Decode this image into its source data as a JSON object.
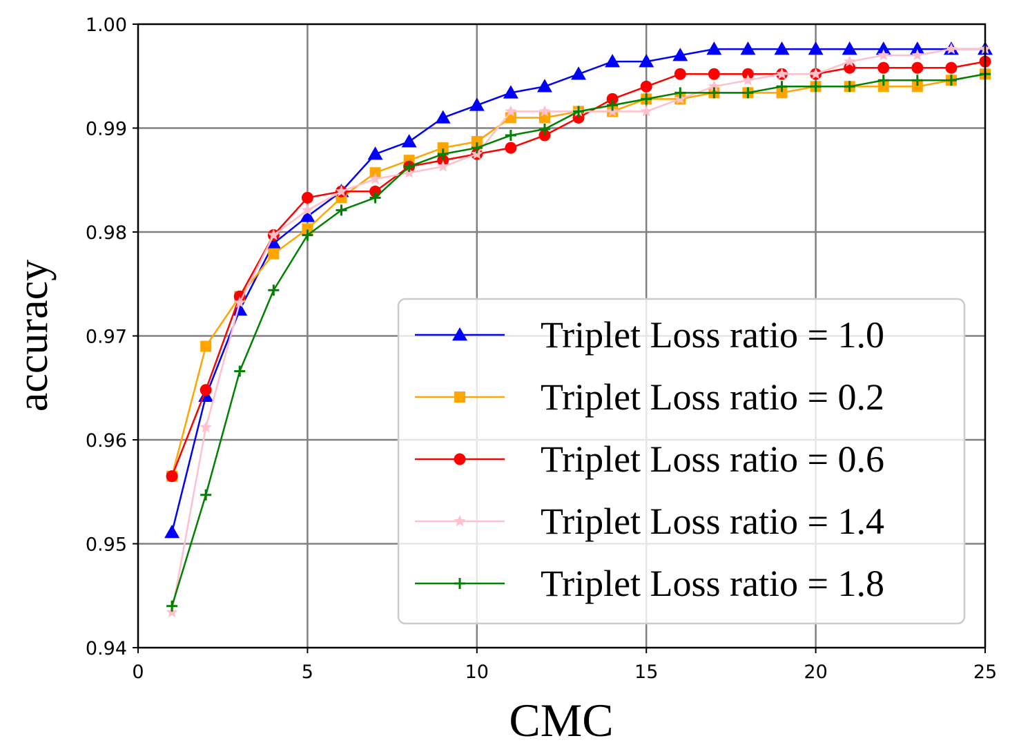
{
  "chart_data": {
    "type": "line",
    "title": "",
    "xlabel": "CMC",
    "ylabel": "accuracy",
    "xlim": [
      0,
      25
    ],
    "ylim": [
      0.94,
      1.0
    ],
    "grid": true,
    "legend_position": "lower-right",
    "xticks": [
      0,
      5,
      10,
      15,
      20,
      25
    ],
    "xtick_labels": [
      "0",
      "5",
      "10",
      "15",
      "20",
      "25"
    ],
    "yticks": [
      0.94,
      0.95,
      0.96,
      0.97,
      0.98,
      0.99,
      1.0
    ],
    "ytick_labels": [
      "0.94",
      "0.95",
      "0.96",
      "0.97",
      "0.98",
      "0.99",
      "1.00"
    ],
    "x": [
      1,
      2,
      3,
      4,
      5,
      6,
      7,
      8,
      9,
      10,
      11,
      12,
      13,
      14,
      15,
      16,
      17,
      18,
      19,
      20,
      21,
      22,
      23,
      24,
      25
    ],
    "series": [
      {
        "name": "Triplet Loss ratio = 1.0",
        "color": "#0000ff",
        "marker": "triangle",
        "values": [
          0.9511,
          0.9642,
          0.9725,
          0.9789,
          0.9815,
          0.9839,
          0.9875,
          0.9887,
          0.991,
          0.9922,
          0.9934,
          0.994,
          0.9952,
          0.9964,
          0.9964,
          0.997,
          0.9976,
          0.9976,
          0.9976,
          0.9976,
          0.9976,
          0.9976,
          0.9976,
          0.9976,
          0.9976
        ]
      },
      {
        "name": "Triplet Loss ratio = 0.2",
        "color": "#ffa500",
        "marker": "square",
        "values": [
          0.9565,
          0.969,
          0.9738,
          0.9779,
          0.9803,
          0.9833,
          0.9857,
          0.9869,
          0.9881,
          0.9887,
          0.991,
          0.991,
          0.9916,
          0.9916,
          0.9928,
          0.9928,
          0.9934,
          0.9934,
          0.9934,
          0.994,
          0.994,
          0.994,
          0.994,
          0.9946,
          0.9952
        ]
      },
      {
        "name": "Triplet Loss ratio = 0.6",
        "color": "#ff0000",
        "marker": "circle",
        "values": [
          0.9565,
          0.9648,
          0.9738,
          0.9797,
          0.9833,
          0.9839,
          0.9839,
          0.9863,
          0.9869,
          0.9875,
          0.9881,
          0.9893,
          0.991,
          0.9928,
          0.994,
          0.9952,
          0.9952,
          0.9952,
          0.9952,
          0.9952,
          0.9958,
          0.9958,
          0.9958,
          0.9958,
          0.9964
        ]
      },
      {
        "name": "Triplet Loss ratio = 1.4",
        "color": "#ffc0cb",
        "marker": "star",
        "values": [
          0.9434,
          0.9612,
          0.9732,
          0.9797,
          0.9821,
          0.9839,
          0.9851,
          0.9857,
          0.9863,
          0.9875,
          0.9916,
          0.9916,
          0.9916,
          0.9916,
          0.9916,
          0.9928,
          0.994,
          0.9946,
          0.9952,
          0.9952,
          0.9964,
          0.997,
          0.997,
          0.9976,
          0.9976
        ]
      },
      {
        "name": "Triplet Loss ratio = 1.8",
        "color": "#008000",
        "marker": "plus",
        "values": [
          0.944,
          0.9547,
          0.9666,
          0.9744,
          0.9797,
          0.9821,
          0.9833,
          0.9863,
          0.9875,
          0.9881,
          0.9893,
          0.9899,
          0.9916,
          0.9922,
          0.9928,
          0.9934,
          0.9934,
          0.9934,
          0.994,
          0.994,
          0.994,
          0.9946,
          0.9946,
          0.9946,
          0.9952
        ]
      }
    ]
  }
}
